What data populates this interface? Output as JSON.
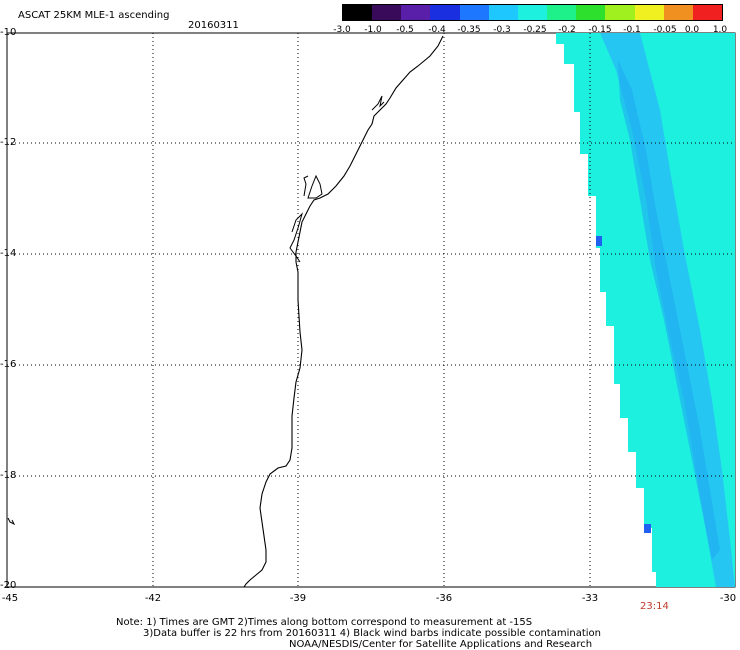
{
  "header": {
    "title": "ASCAT 25KM MLE-1 ascending",
    "date": "20160311"
  },
  "colorbar": {
    "labels": [
      "-3.0",
      "-1.0",
      "-0.5",
      "-0.4",
      "-0.35",
      "-0.3",
      "-0.25",
      "-0.2",
      "-0.15",
      "-0.1",
      "-0.05",
      "0.0",
      "1.0"
    ],
    "colors": [
      "#000000",
      "#3a0a5a",
      "#5a1fa8",
      "#1a2fe0",
      "#1e78ff",
      "#1ec8ff",
      "#1ef0e0",
      "#1ef08a",
      "#2ee02e",
      "#a0f020",
      "#f0f020",
      "#f09020",
      "#f02020"
    ]
  },
  "axes": {
    "y_labels": [
      "-10",
      "-12",
      "-14",
      "-16",
      "-18",
      "-20"
    ],
    "x_labels": [
      "-45",
      "-42",
      "-39",
      "-36",
      "-33",
      "-30"
    ]
  },
  "swath": {
    "time": "23:14",
    "fill_color": "#1ef0e0",
    "band_color": "#27c0f5",
    "edge_color": "#2060f0"
  },
  "notes": {
    "line1": "Note: 1) Times are GMT 2)Times along bottom correspond to measurement at -15S",
    "line2": "3)Data buffer is 22 hrs from 20160311 4) Black wind barbs indicate possible contamination",
    "line3": "NOAA/NESDIS/Center for Satellite Applications and Research"
  }
}
